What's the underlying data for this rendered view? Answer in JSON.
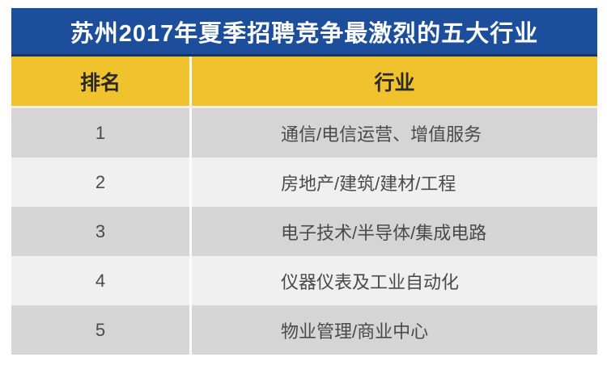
{
  "chart_data": {
    "type": "table",
    "title": "苏州2017年夏季招聘竞争最激烈的五大行业",
    "columns": [
      "排名",
      "行业"
    ],
    "rows": [
      [
        "1",
        "通信/电信运营、增值服务"
      ],
      [
        "2",
        "房地产/建筑/建材/工程"
      ],
      [
        "3",
        "电子技术/半导体/集成电路"
      ],
      [
        "4",
        "仪器仪表及工业自动化"
      ],
      [
        "5",
        "物业管理/商业中心"
      ]
    ],
    "layout_hints": {
      "header_alignment": "center",
      "rank_alignment": "center",
      "industry_alignment": "left",
      "row_striping": "dark-light-alternating"
    }
  },
  "colors": {
    "title_bg": "#1c4e9c",
    "title_text": "#ffffff",
    "navy_border": "#17365f",
    "header_bg": "#f0c32e",
    "header_text": "#2d2a26",
    "row_dark": "#d5d5d5",
    "row_light": "#f0f0f0",
    "row_text": "#4a4a4a",
    "divider": "#fafafa"
  }
}
